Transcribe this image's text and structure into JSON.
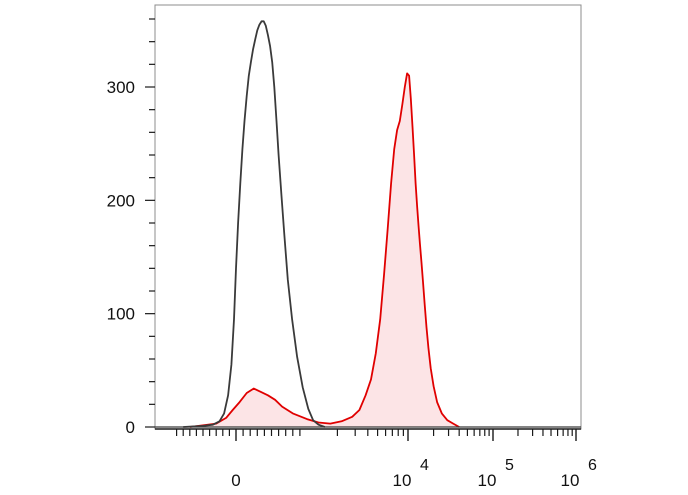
{
  "chart_data": {
    "type": "area",
    "title": "",
    "xlabel": "",
    "ylabel": "",
    "x_scale": "biexponential",
    "xlim": [
      -1000,
      1000000
    ],
    "ylim": [
      0,
      370
    ],
    "y_ticks": [
      {
        "value": 0,
        "label": "0"
      },
      {
        "value": 100,
        "label": "100"
      },
      {
        "value": 200,
        "label": "200"
      },
      {
        "value": 300,
        "label": "300"
      }
    ],
    "x_ticks": [
      {
        "value": 0,
        "base": "0",
        "exp": ""
      },
      {
        "value": 10000,
        "base": "10",
        "exp": "4"
      },
      {
        "value": 100000,
        "base": "10",
        "exp": "5"
      },
      {
        "value": 1000000,
        "base": "10",
        "exp": "6"
      }
    ],
    "grid": false,
    "legend": "none",
    "series": [
      {
        "role": "control",
        "color": "#3a3a3a",
        "fill": "none",
        "points": [
          [
            -800,
            0
          ],
          [
            -500,
            1
          ],
          [
            -350,
            2
          ],
          [
            -250,
            5
          ],
          [
            -180,
            12
          ],
          [
            -120,
            28
          ],
          [
            -70,
            55
          ],
          [
            -30,
            95
          ],
          [
            0,
            140
          ],
          [
            30,
            180
          ],
          [
            60,
            215
          ],
          [
            90,
            245
          ],
          [
            120,
            270
          ],
          [
            150,
            292
          ],
          [
            180,
            310
          ],
          [
            210,
            322
          ],
          [
            240,
            333
          ],
          [
            270,
            342
          ],
          [
            300,
            350
          ],
          [
            330,
            355
          ],
          [
            360,
            358
          ],
          [
            390,
            358
          ],
          [
            420,
            354
          ],
          [
            450,
            346
          ],
          [
            480,
            336
          ],
          [
            510,
            322
          ],
          [
            540,
            300
          ],
          [
            570,
            270
          ],
          [
            600,
            240
          ],
          [
            640,
            205
          ],
          [
            680,
            170
          ],
          [
            730,
            130
          ],
          [
            790,
            95
          ],
          [
            860,
            62
          ],
          [
            940,
            35
          ],
          [
            1030,
            16
          ],
          [
            1150,
            6
          ],
          [
            1300,
            2
          ],
          [
            1500,
            0
          ]
        ]
      },
      {
        "role": "stained",
        "color": "#e00000",
        "fill": "#fce4e6",
        "points": [
          [
            -700,
            0
          ],
          [
            -300,
            3
          ],
          [
            -150,
            8
          ],
          [
            -50,
            15
          ],
          [
            50,
            22
          ],
          [
            150,
            30
          ],
          [
            250,
            34
          ],
          [
            350,
            31
          ],
          [
            450,
            28
          ],
          [
            550,
            24
          ],
          [
            650,
            18
          ],
          [
            800,
            12
          ],
          [
            1000,
            7
          ],
          [
            1300,
            4
          ],
          [
            1700,
            3
          ],
          [
            2200,
            5
          ],
          [
            2800,
            9
          ],
          [
            3300,
            15
          ],
          [
            3800,
            28
          ],
          [
            4300,
            42
          ],
          [
            4800,
            65
          ],
          [
            5300,
            95
          ],
          [
            5800,
            135
          ],
          [
            6300,
            175
          ],
          [
            6800,
            215
          ],
          [
            7300,
            245
          ],
          [
            7800,
            262
          ],
          [
            8300,
            270
          ],
          [
            8800,
            285
          ],
          [
            9300,
            300
          ],
          [
            9800,
            312
          ],
          [
            10300,
            310
          ],
          [
            10800,
            290
          ],
          [
            11300,
            265
          ],
          [
            11800,
            240
          ],
          [
            12300,
            215
          ],
          [
            12800,
            195
          ],
          [
            13300,
            178
          ],
          [
            13800,
            162
          ],
          [
            14400,
            145
          ],
          [
            15000,
            128
          ],
          [
            15700,
            108
          ],
          [
            16500,
            88
          ],
          [
            17400,
            70
          ],
          [
            18500,
            52
          ],
          [
            20000,
            36
          ],
          [
            22000,
            22
          ],
          [
            25000,
            12
          ],
          [
            29000,
            6
          ],
          [
            34000,
            3
          ],
          [
            40000,
            0
          ]
        ]
      }
    ]
  }
}
